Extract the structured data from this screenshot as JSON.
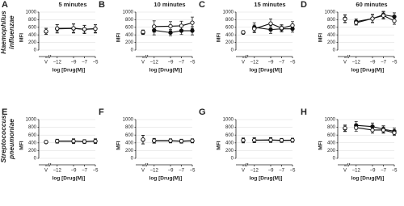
{
  "row_labels": [
    [
      "Haemophilus",
      "influenzae"
    ],
    [
      "Streptococcus",
      "pneumoniae"
    ]
  ],
  "chart_data": [
    {
      "type": "line",
      "panel": "A",
      "title": "5 minutes",
      "ylabel": "MFI",
      "xlabel": "log [Drug(M)]",
      "vehicle_label": "V",
      "x": [
        -12,
        -9,
        -7,
        -5
      ],
      "xlim": [
        -13,
        -5
      ],
      "xticks": [
        {
          "value": -12,
          "label": "−12"
        },
        {
          "value": -9,
          "label": "−9"
        },
        {
          "value": -7,
          "label": "−7"
        },
        {
          "value": -5,
          "label": "−5"
        }
      ],
      "ylim": [
        0,
        1000
      ],
      "yticks": [
        0,
        200,
        400,
        600,
        800,
        1000
      ],
      "grid": true,
      "series": [
        {
          "color": "#111111",
          "marker": "filled",
          "vehicle_value": 490,
          "vehicle_error": 80,
          "values": [
            560,
            570,
            545,
            560
          ],
          "errors": [
            110,
            120,
            110,
            110
          ]
        },
        {
          "color": "#111111",
          "marker": "open",
          "vehicle_value": 495,
          "vehicle_error": 80,
          "values": [
            570,
            575,
            550,
            565
          ],
          "errors": [
            100,
            110,
            100,
            100
          ]
        }
      ]
    },
    {
      "type": "line",
      "panel": "B",
      "title": "10 minutes",
      "ylabel": "MFI",
      "xlabel": "log [Drug(M)]",
      "vehicle_label": "V",
      "x": [
        -12,
        -9,
        -7,
        -5
      ],
      "xlim": [
        -13,
        -5
      ],
      "xticks": [
        {
          "value": -12,
          "label": "−12"
        },
        {
          "value": -9,
          "label": "−9"
        },
        {
          "value": -7,
          "label": "−7"
        },
        {
          "value": -5,
          "label": "−5"
        }
      ],
      "ylim": [
        0,
        1000
      ],
      "yticks": [
        0,
        200,
        400,
        600,
        800,
        1000
      ],
      "grid": true,
      "series": [
        {
          "color": "#111111",
          "marker": "filled",
          "vehicle_value": 460,
          "vehicle_error": 50,
          "values": [
            520,
            460,
            510,
            510
          ],
          "errors": [
            120,
            80,
            100,
            110
          ]
        },
        {
          "color": "#111111",
          "marker": "open",
          "vehicle_value": 480,
          "vehicle_error": 50,
          "values": [
            620,
            630,
            640,
            720
          ],
          "errors": [
            150,
            120,
            120,
            150
          ]
        }
      ]
    },
    {
      "type": "line",
      "panel": "C",
      "title": "15 minutes",
      "ylabel": "MFI",
      "xlabel": "log [Drug(M)]",
      "vehicle_label": "V",
      "x": [
        -12,
        -9,
        -7,
        -5
      ],
      "xlim": [
        -13,
        -5
      ],
      "xticks": [
        {
          "value": -12,
          "label": "−12"
        },
        {
          "value": -9,
          "label": "−9"
        },
        {
          "value": -7,
          "label": "−7"
        },
        {
          "value": -5,
          "label": "−5"
        }
      ],
      "ylim": [
        0,
        1000
      ],
      "yticks": [
        0,
        200,
        400,
        600,
        800,
        1000
      ],
      "grid": true,
      "series": [
        {
          "color": "#111111",
          "marker": "filled",
          "vehicle_value": 460,
          "vehicle_error": 40,
          "values": [
            600,
            540,
            560,
            560
          ],
          "errors": [
            120,
            100,
            80,
            90
          ]
        },
        {
          "color": "#111111",
          "marker": "open",
          "vehicle_value": 470,
          "vehicle_error": 40,
          "values": [
            560,
            700,
            580,
            650
          ],
          "errors": [
            100,
            120,
            90,
            100
          ]
        }
      ]
    },
    {
      "type": "line",
      "panel": "D",
      "title": "60 minutes",
      "ylabel": "MFI",
      "xlabel": "log [Drug(M)]",
      "vehicle_label": "V",
      "x": [
        -12,
        -9,
        -7,
        -5
      ],
      "xlim": [
        -13,
        -5
      ],
      "xticks": [
        {
          "value": -12,
          "label": "−12"
        },
        {
          "value": -9,
          "label": "−9"
        },
        {
          "value": -7,
          "label": "−7"
        },
        {
          "value": -5,
          "label": "−5"
        }
      ],
      "ylim": [
        0,
        1000
      ],
      "yticks": [
        0,
        200,
        400,
        600,
        800,
        1000
      ],
      "grid": true,
      "series": [
        {
          "color": "#111111",
          "marker": "filled",
          "vehicle_value": 830,
          "vehicle_error": 100,
          "values": [
            750,
            830,
            930,
            880
          ],
          "errors": [
            70,
            110,
            90,
            100
          ]
        },
        {
          "color": "#111111",
          "marker": "open",
          "vehicle_value": 820,
          "vehicle_error": 100,
          "values": [
            720,
            830,
            910,
            770
          ],
          "errors": [
            60,
            100,
            90,
            90
          ]
        }
      ]
    },
    {
      "type": "line",
      "panel": "E",
      "ylabel": "MFI",
      "xlabel": "log [Drug(M)]",
      "vehicle_label": "V",
      "x": [
        -12,
        -9,
        -7,
        -5
      ],
      "xlim": [
        -13,
        -5
      ],
      "xticks": [
        {
          "value": -12,
          "label": "−12"
        },
        {
          "value": -9,
          "label": "−9"
        },
        {
          "value": -7,
          "label": "−7"
        },
        {
          "value": -5,
          "label": "−5"
        }
      ],
      "ylim": [
        0,
        1000
      ],
      "yticks": [
        0,
        200,
        400,
        600,
        800,
        1000
      ],
      "grid": true,
      "series": [
        {
          "color": "#111111",
          "marker": "filled",
          "vehicle_value": 420,
          "vehicle_error": 30,
          "values": [
            440,
            440,
            430,
            440
          ],
          "errors": [
            50,
            60,
            50,
            60
          ]
        },
        {
          "color": "#111111",
          "marker": "open",
          "vehicle_value": 425,
          "vehicle_error": 30,
          "values": [
            445,
            445,
            435,
            445
          ],
          "errors": [
            50,
            60,
            50,
            60
          ]
        }
      ]
    },
    {
      "type": "line",
      "panel": "F",
      "ylabel": "MFI",
      "xlabel": "log [Drug(M)]",
      "vehicle_label": "V",
      "x": [
        -12,
        -9,
        -7,
        -5
      ],
      "xlim": [
        -13,
        -5
      ],
      "xticks": [
        {
          "value": -12,
          "label": "−12"
        },
        {
          "value": -9,
          "label": "−9"
        },
        {
          "value": -7,
          "label": "−7"
        },
        {
          "value": -5,
          "label": "−5"
        }
      ],
      "ylim": [
        0,
        1000
      ],
      "yticks": [
        0,
        200,
        400,
        600,
        800,
        1000
      ],
      "grid": true,
      "series": [
        {
          "color": "#111111",
          "marker": "filled",
          "vehicle_value": 480,
          "vehicle_error": 110,
          "values": [
            450,
            450,
            440,
            450
          ],
          "errors": [
            60,
            50,
            50,
            50
          ]
        },
        {
          "color": "#111111",
          "marker": "open",
          "vehicle_value": 485,
          "vehicle_error": 110,
          "values": [
            455,
            455,
            445,
            455
          ],
          "errors": [
            60,
            50,
            50,
            50
          ]
        }
      ]
    },
    {
      "type": "line",
      "panel": "G",
      "ylabel": "MFI",
      "xlabel": "log [Drug(M)]",
      "vehicle_label": "V",
      "x": [
        -12,
        -9,
        -7,
        -5
      ],
      "xlim": [
        -13,
        -5
      ],
      "xticks": [
        {
          "value": -12,
          "label": "−12"
        },
        {
          "value": -9,
          "label": "−9"
        },
        {
          "value": -7,
          "label": "−7"
        },
        {
          "value": -5,
          "label": "−5"
        }
      ],
      "ylim": [
        0,
        1000
      ],
      "yticks": [
        0,
        200,
        400,
        600,
        800,
        1000
      ],
      "grid": true,
      "series": [
        {
          "color": "#111111",
          "marker": "filled",
          "vehicle_value": 460,
          "vehicle_error": 60,
          "values": [
            465,
            470,
            460,
            465
          ],
          "errors": [
            60,
            60,
            50,
            50
          ]
        },
        {
          "color": "#111111",
          "marker": "open",
          "vehicle_value": 465,
          "vehicle_error": 60,
          "values": [
            470,
            475,
            465,
            470
          ],
          "errors": [
            60,
            60,
            50,
            50
          ]
        }
      ]
    },
    {
      "type": "line",
      "panel": "H",
      "ylabel": "MFI",
      "xlabel": "log [Drug(M)]",
      "vehicle_label": "V",
      "x": [
        -12,
        -9,
        -7,
        -5
      ],
      "xlim": [
        -13,
        -5
      ],
      "xticks": [
        {
          "value": -12,
          "label": "−12"
        },
        {
          "value": -9,
          "label": "−9"
        },
        {
          "value": -7,
          "label": "−7"
        },
        {
          "value": -5,
          "label": "−5"
        }
      ],
      "ylim": [
        0,
        1000
      ],
      "yticks": [
        0,
        200,
        400,
        600,
        800,
        1000
      ],
      "grid": true,
      "series": [
        {
          "color": "#111111",
          "marker": "filled",
          "vehicle_value": 770,
          "vehicle_error": 80,
          "values": [
            850,
            820,
            750,
            700
          ],
          "errors": [
            100,
            90,
            90,
            80
          ]
        },
        {
          "color": "#111111",
          "marker": "open",
          "vehicle_value": 780,
          "vehicle_error": 80,
          "values": [
            790,
            730,
            730,
            660
          ],
          "errors": [
            90,
            80,
            80,
            70
          ]
        }
      ]
    }
  ]
}
